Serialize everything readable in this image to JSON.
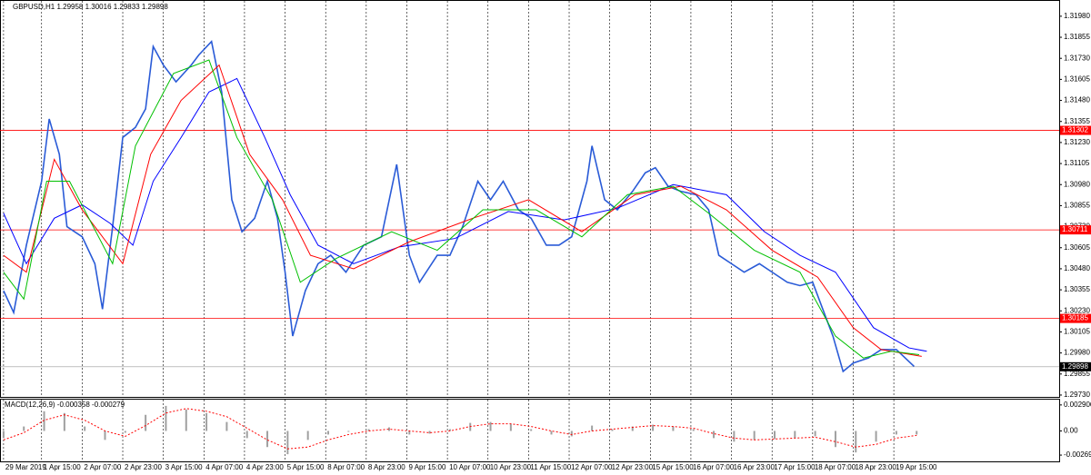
{
  "chart_data": [
    {
      "type": "line",
      "title": "GBPUSD,H1  1.29958 1.30016 1.29833 1.29898",
      "xlim": [
        -1.4,
        416.2
      ],
      "xticks": [
        {
          "value": 0,
          "label": "29 Mar 2019"
        },
        {
          "value": 15,
          "label": "1 Apr 15:00"
        },
        {
          "value": 31,
          "label": "2 Apr 07:00"
        },
        {
          "value": 47,
          "label": "2 Apr 23:00"
        },
        {
          "value": 63,
          "label": "3 Apr 15:00"
        },
        {
          "value": 79,
          "label": "4 Apr 07:00"
        },
        {
          "value": 95,
          "label": "4 Apr 23:00"
        },
        {
          "value": 111,
          "label": "5 Apr 15:00"
        },
        {
          "value": 127,
          "label": "8 Apr 07:00"
        },
        {
          "value": 143,
          "label": "8 Apr 23:00"
        },
        {
          "value": 159,
          "label": "9 Apr 15:00"
        },
        {
          "value": 175,
          "label": "10 Apr 07:00"
        },
        {
          "value": 191,
          "label": "10 Apr 23:00"
        },
        {
          "value": 207,
          "label": "11 Apr 15:00"
        },
        {
          "value": 223,
          "label": "12 Apr 07:00"
        },
        {
          "value": 239,
          "label": "12 Apr 23:00"
        },
        {
          "value": 255,
          "label": "15 Apr 15:00"
        },
        {
          "value": 271,
          "label": "16 Apr 07:00"
        },
        {
          "value": 287,
          "label": "16 Apr 23:00"
        },
        {
          "value": 303,
          "label": "17 Apr 15:00"
        },
        {
          "value": 319,
          "label": "18 Apr 07:00"
        },
        {
          "value": 335,
          "label": "18 Apr 23:00"
        },
        {
          "value": 351,
          "label": "19 Apr 15:00"
        }
      ],
      "ylim": [
        1.29719,
        1.32071
      ],
      "yticks": [
        {
          "value": 1.3198,
          "label": "1.31980"
        },
        1.31855,
        {
          "value": 1.3173,
          "label": "1.31730"
        },
        1.31605,
        {
          "value": 1.3148,
          "label": "1.31480"
        },
        1.31355,
        {
          "value": 1.3123,
          "label": "1.31230"
        },
        1.31105,
        {
          "value": 1.3098,
          "label": "1.30980"
        },
        1.30855,
        {
          "value": 1.3073,
          "label": "1.30730"
        },
        1.30605,
        {
          "value": 1.3048,
          "label": "1.30480"
        },
        1.30355,
        {
          "value": 1.3023,
          "label": "1.30230"
        },
        1.30105,
        {
          "value": 1.2998,
          "label": "1.29980"
        },
        1.29855,
        {
          "value": 1.2973,
          "label": "1.29730"
        }
      ],
      "grid": true,
      "hlines": [
        1.31302,
        1.30711,
        1.30185
      ],
      "hline_color": "#ff0000",
      "last_price": 1.29898,
      "series": [
        {
          "color": "#2a5bd7",
          "width": 1.6,
          "x": [
            0,
            4,
            9,
            15,
            18,
            22,
            25,
            31,
            36,
            39,
            43,
            47,
            52,
            56,
            59,
            63,
            68,
            74,
            77,
            82,
            86,
            90,
            94,
            99,
            104,
            108,
            111,
            114,
            119,
            124,
            129,
            135,
            142,
            149,
            155,
            160,
            164,
            171,
            176,
            181,
            187,
            192,
            197,
            203,
            208,
            214,
            219,
            224,
            230,
            232,
            237,
            242,
            248,
            253,
            257,
            262,
            267,
            273,
            278,
            282,
            287,
            292,
            298,
            303,
            309,
            314,
            319,
            323,
            327,
            331,
            335,
            341,
            346,
            352,
            359
          ],
          "values": [
            1.3035,
            1.3022,
            1.3062,
            1.31,
            1.3137,
            1.3116,
            1.3073,
            1.3067,
            1.3051,
            1.3024,
            1.3073,
            1.3126,
            1.3132,
            1.3143,
            1.318,
            1.3169,
            1.3159,
            1.3169,
            1.3175,
            1.3183,
            1.3153,
            1.3089,
            1.307,
            1.3078,
            1.31,
            1.3078,
            1.3046,
            1.3008,
            1.3035,
            1.3051,
            1.3056,
            1.3046,
            1.3062,
            1.3067,
            1.311,
            1.3056,
            1.304,
            1.3056,
            1.3056,
            1.3073,
            1.31,
            1.3089,
            1.31,
            1.3083,
            1.3078,
            1.3062,
            1.3062,
            1.3067,
            1.31,
            1.3121,
            1.3089,
            1.3083,
            1.3094,
            1.3105,
            1.3108,
            1.3097,
            1.3094,
            1.3092,
            1.3083,
            1.3056,
            1.3051,
            1.3046,
            1.3051,
            1.3046,
            1.304,
            1.3038,
            1.304,
            1.3024,
            1.3008,
            1.2987,
            1.2992,
            1.2995,
            1.3,
            1.3,
            1.299
          ]
        },
        {
          "color": "#0000ff",
          "width": 1,
          "x": [
            0,
            9,
            20,
            31,
            42,
            51,
            59,
            70,
            81,
            92,
            103,
            113,
            124,
            138,
            156,
            178,
            199,
            221,
            242,
            264,
            285,
            300,
            314,
            328,
            343,
            357,
            364
          ],
          "values": [
            1.3081,
            1.3051,
            1.3078,
            1.3086,
            1.3075,
            1.3062,
            1.31,
            1.3126,
            1.3153,
            1.3161,
            1.3126,
            1.3092,
            1.3062,
            1.3051,
            1.3061,
            1.3066,
            1.3082,
            1.3077,
            1.3084,
            1.3098,
            1.3092,
            1.307,
            1.3056,
            1.3046,
            1.3013,
            1.3001,
            1.2999
          ]
        },
        {
          "color": "#ff0000",
          "width": 1,
          "x": [
            0,
            9,
            20,
            31,
            47,
            58,
            70,
            85,
            97,
            110,
            121,
            138,
            160,
            185,
            207,
            228,
            249,
            267,
            285,
            303,
            321,
            335,
            346,
            362
          ],
          "values": [
            1.3056,
            1.3046,
            1.3113,
            1.3083,
            1.3051,
            1.3116,
            1.3148,
            1.3169,
            1.3116,
            1.3089,
            1.3056,
            1.3048,
            1.3064,
            1.3078,
            1.3089,
            1.307,
            1.3092,
            1.3097,
            1.3083,
            1.3059,
            1.3043,
            1.3013,
            1.3,
            1.2996
          ]
        },
        {
          "color": "#00c000",
          "width": 1,
          "x": [
            0,
            8,
            17,
            26,
            43,
            52,
            67,
            81,
            92,
            106,
            117,
            131,
            153,
            171,
            189,
            210,
            228,
            246,
            264,
            278,
            296,
            314,
            328,
            339,
            350,
            361
          ],
          "values": [
            1.3046,
            1.303,
            1.31,
            1.31,
            1.3051,
            1.3121,
            1.3164,
            1.3172,
            1.3126,
            1.3089,
            1.304,
            1.3054,
            1.307,
            1.3059,
            1.3083,
            1.3083,
            1.3067,
            1.3092,
            1.3097,
            1.3081,
            1.3059,
            1.3046,
            1.3008,
            1.2995,
            1.2999,
            1.2997
          ]
        }
      ]
    },
    {
      "type": "macd",
      "title": "MACD(12,26,9) -0.000358 -0.000279",
      "ylim": [
        -0.0034,
        0.0035
      ],
      "yticks": [
        0.002906,
        {
          "value": 0,
          "label": "0.00"
        },
        -0.002697
      ],
      "x": [
        0,
        8,
        16,
        24,
        32,
        40,
        48,
        56,
        64,
        72,
        80,
        88,
        96,
        104,
        112,
        120,
        128,
        136,
        144,
        152,
        160,
        168,
        176,
        184,
        192,
        200,
        208,
        216,
        224,
        232,
        240,
        248,
        256,
        264,
        272,
        280,
        288,
        296,
        304,
        312,
        320,
        328,
        336,
        344,
        352,
        360
      ],
      "histogram": {
        "color": "#a0a0a0",
        "values": [
          -0.0008,
          0.0005,
          0.0022,
          0.002,
          0.0005,
          -0.001,
          -0.0002,
          0.0018,
          0.0028,
          0.0024,
          0.002,
          0.001,
          -0.0008,
          -0.0018,
          -0.0026,
          -0.001,
          -0.0004,
          -0.0001,
          0.0002,
          0.0004,
          -0.0004,
          -0.0003,
          0.0002,
          0.0009,
          0.001,
          0.0008,
          0.0002,
          -0.0004,
          -0.0006,
          0.0006,
          0.0002,
          0.0005,
          0.0007,
          0.0005,
          0.0002,
          -0.0008,
          -0.0012,
          -0.001,
          -0.0009,
          -0.0008,
          -0.0006,
          -0.0018,
          -0.0024,
          -0.0012,
          -0.0004,
          -0.0004
        ]
      },
      "signal": {
        "color": "#ff0000",
        "values": [
          -0.001,
          -0.0002,
          0.0012,
          0.0018,
          0.0012,
          0,
          -0.0006,
          0.0006,
          0.002,
          0.0025,
          0.0022,
          0.0016,
          0.0003,
          -0.001,
          -0.002,
          -0.0018,
          -0.001,
          -0.0004,
          0,
          0.0002,
          0,
          -0.0002,
          0,
          0.0005,
          0.0008,
          0.0008,
          0.0005,
          0,
          -0.0004,
          0,
          0.0002,
          0.0004,
          0.0006,
          0.0005,
          0.0003,
          -0.0003,
          -0.0008,
          -0.001,
          -0.0009,
          -0.0008,
          -0.0007,
          -0.0012,
          -0.0018,
          -0.0015,
          -0.0008,
          -0.0005
        ]
      }
    }
  ]
}
